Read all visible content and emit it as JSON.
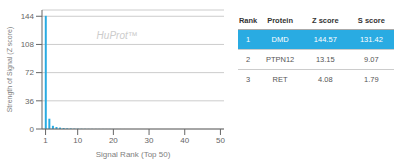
{
  "chart_data": {
    "type": "bar",
    "x": [
      1,
      2,
      3,
      4,
      5,
      6,
      7,
      8,
      9,
      10,
      11,
      12,
      13,
      14,
      15,
      16,
      17,
      18,
      19,
      20,
      21,
      22,
      23,
      24,
      25,
      26,
      27,
      28,
      29,
      30,
      31,
      32,
      33,
      34,
      35,
      36,
      37,
      38,
      39,
      40,
      41,
      42,
      43,
      44,
      45,
      46,
      47,
      48,
      49,
      50
    ],
    "values": [
      144.57,
      13.15,
      4.08,
      2.5,
      1.8,
      1.2,
      0.9,
      0.7,
      0.5,
      0.4,
      0.3,
      0.25,
      0.2,
      0.18,
      0.15,
      0.12,
      0.1,
      0.09,
      0.08,
      0.07,
      0.06,
      0.05,
      0.05,
      0.04,
      0.04,
      0.03,
      0.03,
      0.03,
      0.02,
      0.02,
      0.02,
      0.02,
      0.01,
      0.01,
      0.01,
      0.01,
      0.01,
      0.01,
      0.01,
      0.01,
      0.01,
      0.01,
      0.01,
      0.01,
      0.01,
      0.01,
      0.01,
      0.01,
      0.01,
      0.01
    ],
    "color": "#29abe2",
    "xlabel": "Signal Rank (Top 50)",
    "ylabel": "Strength of Signal (Z score)",
    "xlim": [
      0,
      51
    ],
    "xticks": [
      1,
      10,
      20,
      30,
      40,
      50
    ],
    "ylim": [
      0,
      152
    ],
    "yticks": [
      0,
      36,
      72,
      108,
      144
    ],
    "grid": true,
    "annotations": [
      {
        "text": "HuProt™",
        "color": "#cccccc"
      }
    ],
    "table": {
      "headers": [
        "Rank",
        "Protein",
        "Z score",
        "S score"
      ],
      "rows": [
        [
          "1",
          "DMD",
          "144.57",
          "131.42"
        ],
        [
          "2",
          "PTPN12",
          "13.15",
          "9.07"
        ],
        [
          "3",
          "RET",
          "4.08",
          "1.79"
        ]
      ],
      "highlight_color": "#29abe2",
      "highlight_text_color": "#ffffff",
      "text_color": "#555555",
      "header_text_color": "#333333",
      "header_line_color": "#aaaaaa",
      "separator_color": "#cccccc"
    }
  }
}
